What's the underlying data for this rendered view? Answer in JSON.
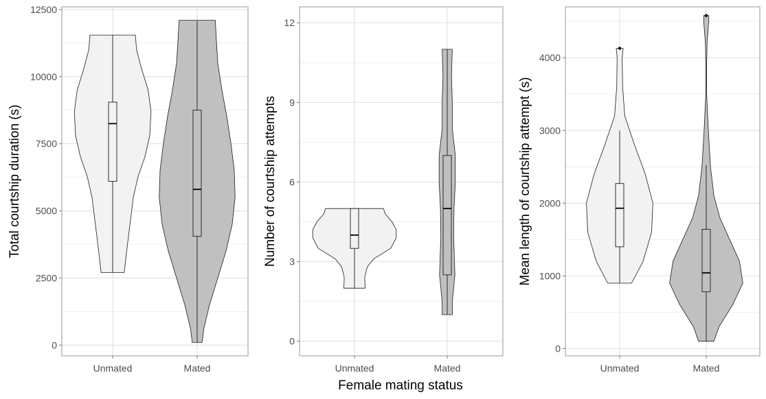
{
  "chart_data": [
    {
      "type": "violin",
      "ylabel": "Total courtship duration (s)",
      "categories": [
        "Unmated",
        "Mated"
      ],
      "ylim": [
        -400,
        12600
      ],
      "yticks": [
        0,
        2500,
        5000,
        7500,
        10000,
        12500
      ],
      "ytick_labels": [
        "0",
        "2500",
        "5000",
        "7500",
        "10000",
        "12500"
      ],
      "groups": [
        {
          "name": "Unmated",
          "fill": "#f2f2f2",
          "box": {
            "q1": 6100,
            "median": 8250,
            "q3": 9050,
            "whisker_low": 2700,
            "whisker_high": 11550
          },
          "outliers": [],
          "density": [
            [
              2700,
              0.28
            ],
            [
              3500,
              0.34
            ],
            [
              4500,
              0.42
            ],
            [
              5500,
              0.5
            ],
            [
              6300,
              0.62
            ],
            [
              7000,
              0.78
            ],
            [
              7800,
              0.9
            ],
            [
              8700,
              0.93
            ],
            [
              9500,
              0.86
            ],
            [
              10300,
              0.7
            ],
            [
              11000,
              0.58
            ],
            [
              11550,
              0.55
            ]
          ]
        },
        {
          "name": "Mated",
          "fill": "#c0c0c0",
          "box": {
            "q1": 4050,
            "median": 5800,
            "q3": 8750,
            "whisker_low": 100,
            "whisker_high": 12100
          },
          "outliers": [],
          "density": [
            [
              100,
              0.12
            ],
            [
              600,
              0.16
            ],
            [
              1500,
              0.3
            ],
            [
              2500,
              0.5
            ],
            [
              3500,
              0.7
            ],
            [
              4500,
              0.85
            ],
            [
              5500,
              0.92
            ],
            [
              6500,
              0.9
            ],
            [
              7500,
              0.82
            ],
            [
              8500,
              0.72
            ],
            [
              9500,
              0.6
            ],
            [
              10500,
              0.5
            ],
            [
              11500,
              0.46
            ],
            [
              12100,
              0.44
            ]
          ]
        }
      ]
    },
    {
      "type": "violin",
      "ylabel": "Number of courtship attempts",
      "categories": [
        "Unmated",
        "Mated"
      ],
      "ylim": [
        -0.55,
        12.6
      ],
      "yticks": [
        0,
        3,
        6,
        9,
        12
      ],
      "ytick_labels": [
        "0",
        "3",
        "6",
        "9",
        "12"
      ],
      "groups": [
        {
          "name": "Unmated",
          "fill": "#f2f2f2",
          "box": {
            "q1": 3.5,
            "median": 4,
            "q3": 5,
            "whisker_low": 2,
            "whisker_high": 5
          },
          "outliers": [],
          "density": [
            [
              2,
              0.25
            ],
            [
              2.4,
              0.24
            ],
            [
              2.8,
              0.3
            ],
            [
              3.1,
              0.45
            ],
            [
              3.5,
              0.85
            ],
            [
              3.9,
              0.98
            ],
            [
              4.2,
              0.98
            ],
            [
              4.5,
              0.88
            ],
            [
              4.8,
              0.72
            ],
            [
              5,
              0.68
            ]
          ]
        },
        {
          "name": "Mated",
          "fill": "#c0c0c0",
          "box": {
            "q1": 2.5,
            "median": 5,
            "q3": 7,
            "whisker_low": 1,
            "whisker_high": 11
          },
          "outliers": [],
          "density": [
            [
              1,
              0.12
            ],
            [
              1.5,
              0.12
            ],
            [
              2,
              0.15
            ],
            [
              2.5,
              0.18
            ],
            [
              3,
              0.17
            ],
            [
              4,
              0.15
            ],
            [
              5,
              0.16
            ],
            [
              6,
              0.19
            ],
            [
              7,
              0.19
            ],
            [
              8,
              0.12
            ],
            [
              9,
              0.12
            ],
            [
              10,
              0.1
            ],
            [
              11,
              0.12
            ]
          ]
        }
      ]
    },
    {
      "type": "violin",
      "ylabel": "Mean length of courtship attempt (s)",
      "categories": [
        "Unmated",
        "Mated"
      ],
      "ylim": [
        -100,
        4700
      ],
      "yticks": [
        0,
        1000,
        2000,
        3000,
        4000
      ],
      "ytick_labels": [
        "0",
        "1000",
        "2000",
        "3000",
        "4000"
      ],
      "groups": [
        {
          "name": "Unmated",
          "fill": "#f2f2f2",
          "box": {
            "q1": 1400,
            "median": 1930,
            "q3": 2270,
            "whisker_low": 900,
            "whisker_high": 3000
          },
          "outliers": [
            4130
          ],
          "density": [
            [
              900,
              0.28
            ],
            [
              1200,
              0.55
            ],
            [
              1600,
              0.75
            ],
            [
              2000,
              0.78
            ],
            [
              2400,
              0.6
            ],
            [
              2800,
              0.35
            ],
            [
              3200,
              0.12
            ],
            [
              3600,
              0.07
            ],
            [
              4000,
              0.06
            ],
            [
              4130,
              0.08
            ]
          ]
        },
        {
          "name": "Mated",
          "fill": "#c0c0c0",
          "box": {
            "q1": 780,
            "median": 1040,
            "q3": 1640,
            "whisker_low": 100,
            "whisker_high": 2520
          },
          "outliers": [
            4580
          ],
          "density": [
            [
              100,
              0.18
            ],
            [
              300,
              0.3
            ],
            [
              600,
              0.62
            ],
            [
              900,
              0.86
            ],
            [
              1200,
              0.78
            ],
            [
              1500,
              0.55
            ],
            [
              1800,
              0.32
            ],
            [
              2100,
              0.18
            ],
            [
              2500,
              0.1
            ],
            [
              3000,
              0.05
            ],
            [
              3500,
              0.01
            ],
            [
              3900,
              0.01
            ],
            [
              4200,
              0.02
            ],
            [
              4500,
              0.06
            ],
            [
              4580,
              0.06
            ]
          ]
        }
      ]
    }
  ],
  "figure": {
    "xlabel": "Female mating status",
    "tick_color": "#4d4d4d"
  }
}
